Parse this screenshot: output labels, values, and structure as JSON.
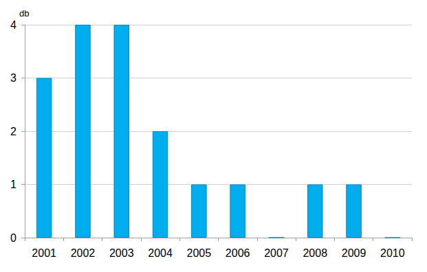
{
  "chart_data": {
    "type": "bar",
    "ylabel": "db",
    "categories": [
      "2001",
      "2002",
      "2003",
      "2004",
      "2005",
      "2006",
      "2007",
      "2008",
      "2009",
      "2010"
    ],
    "values": [
      3,
      4,
      4,
      2,
      1,
      1,
      0,
      1,
      1,
      0
    ],
    "color": "#00aeef",
    "ylim": [
      0,
      4
    ],
    "yticks": [
      0,
      1,
      2,
      3,
      4
    ],
    "grid": true
  }
}
